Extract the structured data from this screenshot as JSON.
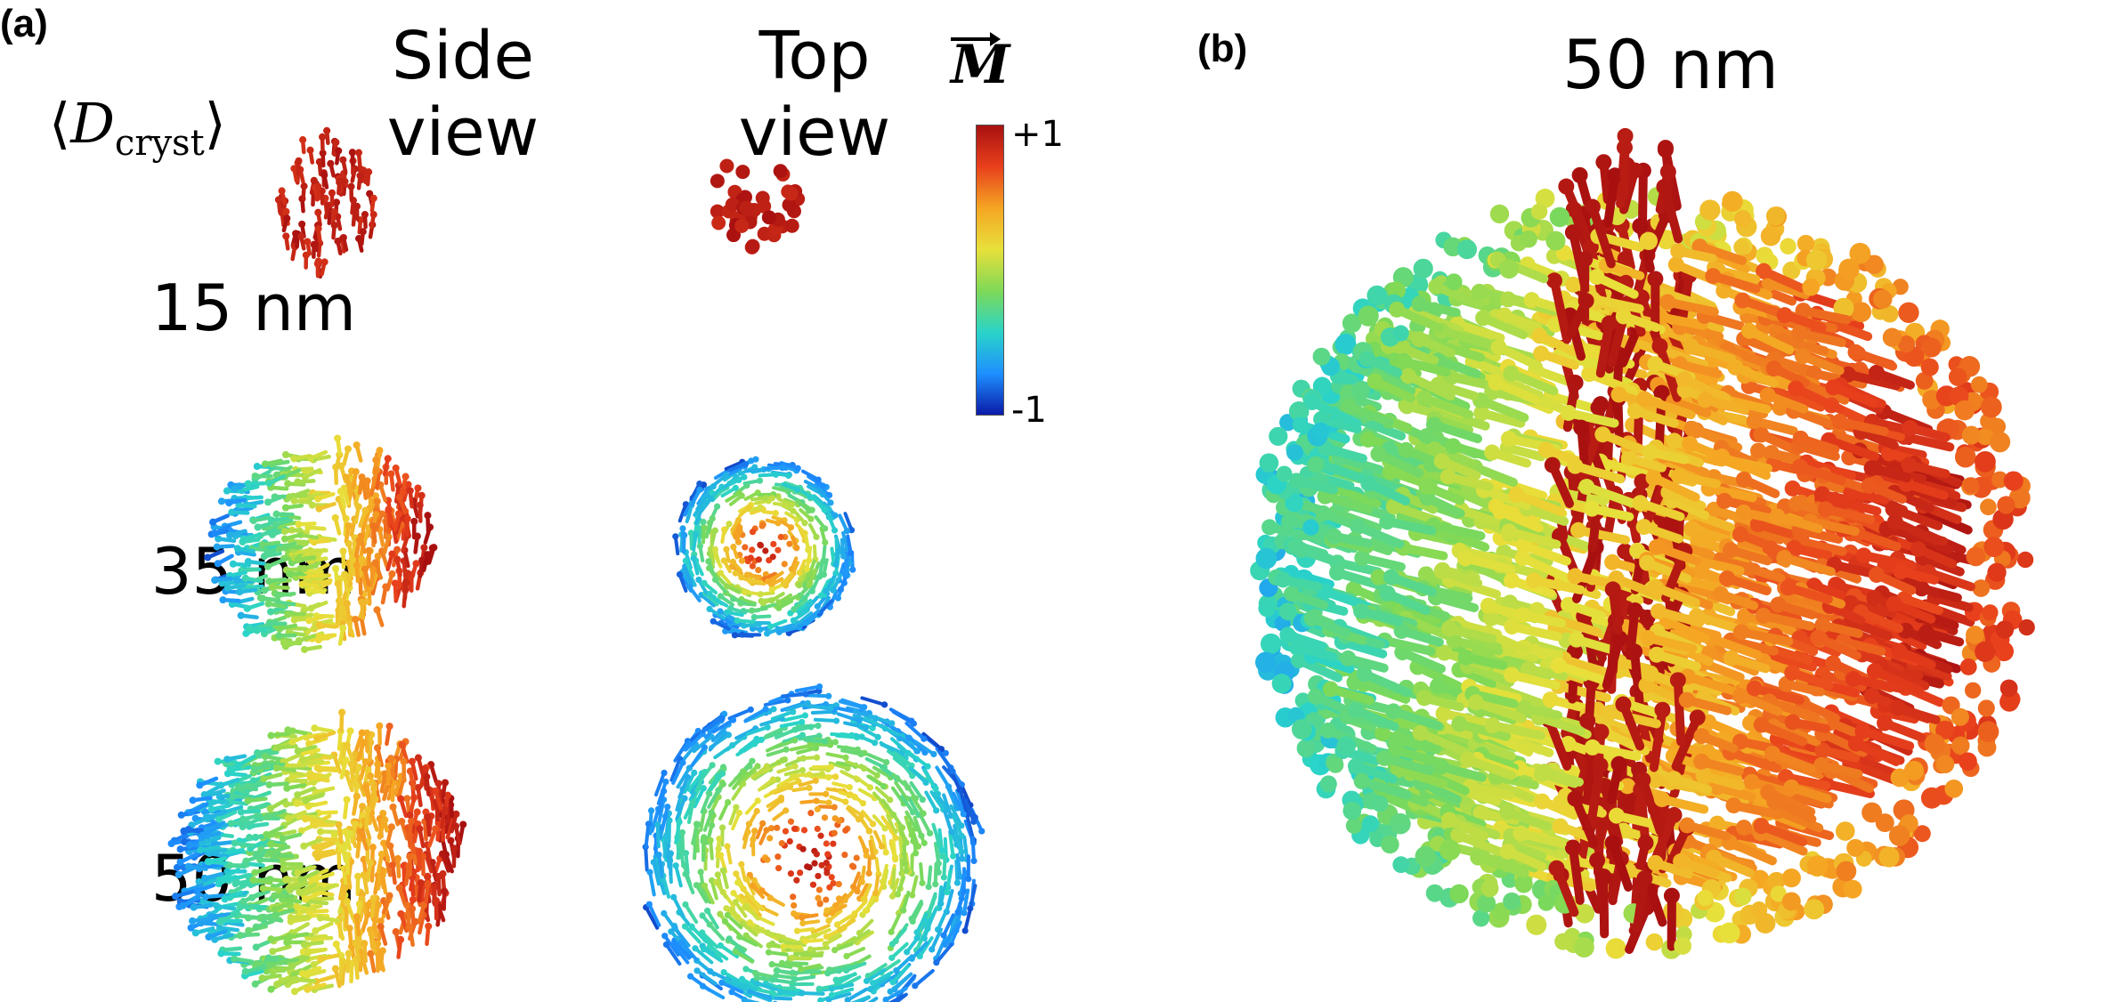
{
  "panels": {
    "a": {
      "label": "(a)",
      "row_header": {
        "bracket_left": "⟨",
        "symbol": "D",
        "subscript": "cryst",
        "bracket_right": "⟩"
      },
      "columns": [
        {
          "line1": "Side",
          "line2": "view"
        },
        {
          "line1": "Top",
          "line2": "view"
        }
      ],
      "rows": [
        {
          "label": "15 nm"
        },
        {
          "label": "35 nm"
        },
        {
          "label": "50 nm"
        }
      ]
    },
    "b": {
      "label": "(b)",
      "title": "50 nm"
    }
  },
  "colorbar": {
    "symbol": "M",
    "max_label": "+1",
    "min_label": "-1",
    "colors": [
      "#0a1aa8",
      "#1e90ff",
      "#2ad4c8",
      "#7ed957",
      "#e8e03a",
      "#f5a623",
      "#e8401c",
      "#a81010"
    ]
  }
}
